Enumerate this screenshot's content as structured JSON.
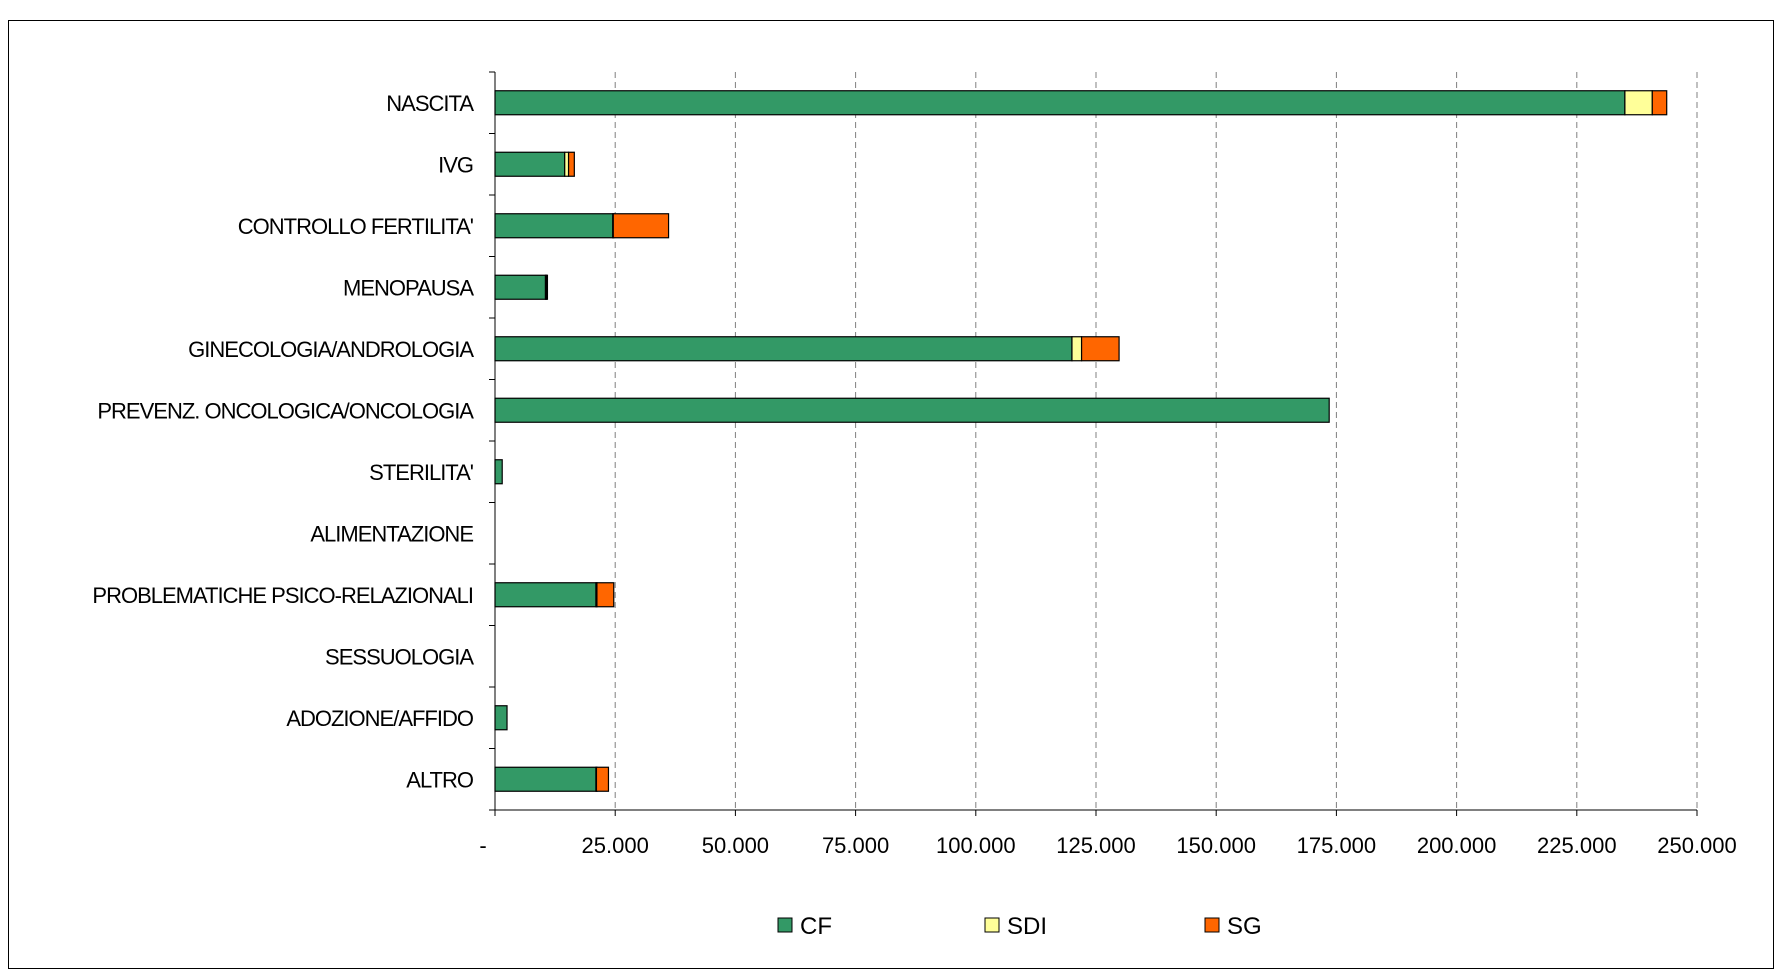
{
  "chart_data": {
    "type": "bar",
    "orientation": "horizontal",
    "stacked": true,
    "title": "",
    "xlabel": "",
    "ylabel": "",
    "xlim": [
      0,
      250000
    ],
    "x_ticks": [
      0,
      25000,
      50000,
      75000,
      100000,
      125000,
      150000,
      175000,
      200000,
      225000,
      250000
    ],
    "x_tick_labels": [
      "-",
      "25.000",
      "50.000",
      "75.000",
      "100.000",
      "125.000",
      "150.000",
      "175.000",
      "200.000",
      "225.000",
      "250.000"
    ],
    "grid": "vertical dashed",
    "legend_position": "bottom",
    "categories": [
      "NASCITA",
      "IVG",
      "CONTROLLO FERTILITA'",
      "MENOPAUSA",
      "GINECOLOGIA/ANDROLOGIA",
      "PREVENZ. ONCOLOGICA/ONCOLOGIA",
      "STERILITA'",
      "ALIMENTAZIONE",
      "PROBLEMATICHE PSICO-RELAZIONALI",
      "SESSUOLOGIA",
      "ADOZIONE/AFFIDO",
      "ALTRO"
    ],
    "series": [
      {
        "name": "CF",
        "color": "#339966",
        "values": [
          235000,
          14500,
          24500,
          10500,
          120000,
          173500,
          1500,
          0,
          21000,
          0,
          2500,
          21000
        ]
      },
      {
        "name": "SDI",
        "color": "#ffff99",
        "values": [
          5700,
          800,
          100,
          200,
          2000,
          0,
          0,
          0,
          200,
          0,
          0,
          100
        ]
      },
      {
        "name": "SG",
        "color": "#ff6600",
        "values": [
          3000,
          1200,
          11500,
          100,
          7800,
          0,
          0,
          0,
          3500,
          0,
          0,
          2500
        ]
      }
    ]
  }
}
